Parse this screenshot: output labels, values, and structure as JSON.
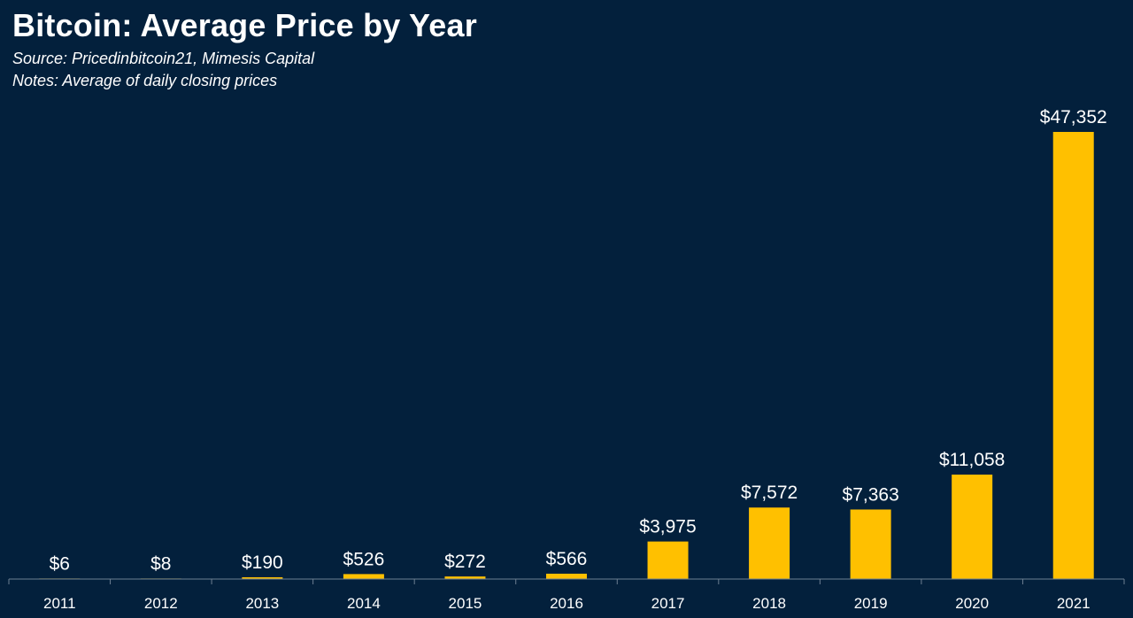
{
  "header": {
    "title": "Bitcoin: Average Price by Year",
    "source": "Source: Pricedinbitcoin21, Mimesis Capital",
    "notes": "Notes: Average of daily closing prices"
  },
  "colors": {
    "background": "#03203c",
    "bar": "#ffc000",
    "text": "#ffffff",
    "axis": "#6d7f92"
  },
  "chart_data": {
    "type": "bar",
    "title": "Bitcoin: Average Price by Year",
    "xlabel": "",
    "ylabel": "",
    "categories": [
      "2011",
      "2012",
      "2013",
      "2014",
      "2015",
      "2016",
      "2017",
      "2018",
      "2019",
      "2020",
      "2021"
    ],
    "values": [
      6,
      8,
      190,
      526,
      272,
      566,
      3975,
      7572,
      7363,
      11058,
      47352
    ],
    "data_labels": [
      "$6",
      "$8",
      "$190",
      "$526",
      "$272",
      "$566",
      "$3,975",
      "$7,572",
      "$7,363",
      "$11,058",
      "$47,352"
    ],
    "ylim": [
      0,
      47352
    ],
    "grid": false,
    "legend": "none"
  }
}
